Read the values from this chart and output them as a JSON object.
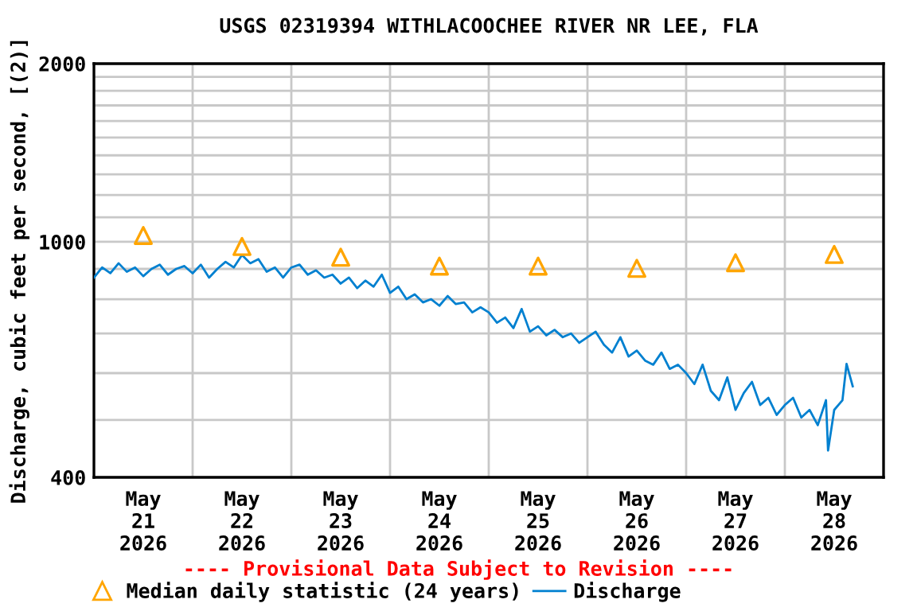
{
  "chart_data": {
    "type": "line",
    "title": "USGS 02319394 WITHLACOOCHEE RIVER NR LEE, FLA",
    "ylabel": "Discharge, cubic feet per second, [(2)]",
    "annotations": [
      "---- Provisional Data Subject to Revision ----"
    ],
    "log": true,
    "grid": true,
    "legend": "bottom",
    "xlim": [
      "2026-05-21T00:00",
      "2026-05-29T00:00"
    ],
    "xticks": [
      {
        "value": "2026-05-21T00:00",
        "label": null
      },
      {
        "value": "2026-05-22T00:00",
        "label": null
      },
      {
        "value": "2026-05-23T00:00",
        "label": null
      },
      {
        "value": "2026-05-24T00:00",
        "label": null
      },
      {
        "value": "2026-05-25T00:00",
        "label": null
      },
      {
        "value": "2026-05-26T00:00",
        "label": null
      },
      {
        "value": "2026-05-27T00:00",
        "label": null
      },
      {
        "value": "2026-05-28T00:00",
        "label": null
      },
      {
        "value": "2026-05-29T00:00",
        "label": null
      },
      {
        "value": "2026-05-21T12:00",
        "label": "May\n21\n2026"
      },
      {
        "value": "2026-05-22T12:00",
        "label": "May\n22\n2026"
      },
      {
        "value": "2026-05-23T12:00",
        "label": "May\n23\n2026"
      },
      {
        "value": "2026-05-24T12:00",
        "label": "May\n24\n2026"
      },
      {
        "value": "2026-05-25T12:00",
        "label": "May\n25\n2026"
      },
      {
        "value": "2026-05-26T12:00",
        "label": "May\n26\n2026"
      },
      {
        "value": "2026-05-27T12:00",
        "label": "May\n27\n2026"
      },
      {
        "value": "2026-05-28T12:00",
        "label": "May\n28\n2026"
      }
    ],
    "ylim": [
      400,
      2000
    ],
    "yticks": [
      400,
      {
        "value": 500,
        "label": null
      },
      {
        "value": 600,
        "label": null
      },
      {
        "value": 700,
        "label": null
      },
      {
        "value": 800,
        "label": null
      },
      {
        "value": 900,
        "label": null
      },
      1000,
      {
        "value": 1100,
        "label": null
      },
      {
        "value": 1200,
        "label": null
      },
      {
        "value": 1300,
        "label": null
      },
      {
        "value": 1400,
        "label": null
      },
      {
        "value": 1500,
        "label": null
      },
      {
        "value": 1600,
        "label": null
      },
      {
        "value": 1700,
        "label": null
      },
      {
        "value": 1800,
        "label": null
      },
      {
        "value": 1900,
        "label": null
      },
      2000
    ],
    "series": [
      {
        "name": "Median daily statistic (24 years)",
        "type": "scatter",
        "marker": "triangle",
        "color": "#ffa500",
        "x": [
          "2026-05-21T12:00",
          "2026-05-22T12:00",
          "2026-05-23T12:00",
          "2026-05-24T12:00",
          "2026-05-25T12:00",
          "2026-05-26T12:00",
          "2026-05-27T12:00",
          "2026-05-28T12:00"
        ],
        "values": [
          1025,
          982,
          942,
          910,
          910,
          902,
          922,
          952
        ]
      },
      {
        "name": "Discharge",
        "color": "#0080d0",
        "x": [
          "2026-05-21T00:00",
          "2026-05-21T02:00",
          "2026-05-21T04:00",
          "2026-05-21T06:00",
          "2026-05-21T08:00",
          "2026-05-21T10:00",
          "2026-05-21T12:00",
          "2026-05-21T14:00",
          "2026-05-21T16:00",
          "2026-05-21T18:00",
          "2026-05-21T20:00",
          "2026-05-21T22:00",
          "2026-05-22T00:00",
          "2026-05-22T02:00",
          "2026-05-22T04:00",
          "2026-05-22T06:00",
          "2026-05-22T08:00",
          "2026-05-22T10:00",
          "2026-05-22T12:00",
          "2026-05-22T14:00",
          "2026-05-22T16:00",
          "2026-05-22T18:00",
          "2026-05-22T20:00",
          "2026-05-22T22:00",
          "2026-05-23T00:00",
          "2026-05-23T02:00",
          "2026-05-23T04:00",
          "2026-05-23T06:00",
          "2026-05-23T08:00",
          "2026-05-23T10:00",
          "2026-05-23T12:00",
          "2026-05-23T14:00",
          "2026-05-23T16:00",
          "2026-05-23T18:00",
          "2026-05-23T20:00",
          "2026-05-23T22:00",
          "2026-05-24T00:00",
          "2026-05-24T02:00",
          "2026-05-24T04:00",
          "2026-05-24T06:00",
          "2026-05-24T08:00",
          "2026-05-24T10:00",
          "2026-05-24T12:00",
          "2026-05-24T14:00",
          "2026-05-24T16:00",
          "2026-05-24T18:00",
          "2026-05-24T20:00",
          "2026-05-24T22:00",
          "2026-05-25T00:00",
          "2026-05-25T02:00",
          "2026-05-25T04:00",
          "2026-05-25T06:00",
          "2026-05-25T08:00",
          "2026-05-25T10:00",
          "2026-05-25T12:00",
          "2026-05-25T14:00",
          "2026-05-25T16:00",
          "2026-05-25T18:00",
          "2026-05-25T20:00",
          "2026-05-25T22:00",
          "2026-05-26T00:00",
          "2026-05-26T02:00",
          "2026-05-26T04:00",
          "2026-05-26T06:00",
          "2026-05-26T08:00",
          "2026-05-26T10:00",
          "2026-05-26T12:00",
          "2026-05-26T14:00",
          "2026-05-26T16:00",
          "2026-05-26T18:00",
          "2026-05-26T20:00",
          "2026-05-26T22:00",
          "2026-05-27T00:00",
          "2026-05-27T02:00",
          "2026-05-27T04:00",
          "2026-05-27T06:00",
          "2026-05-27T08:00",
          "2026-05-27T10:00",
          "2026-05-27T12:00",
          "2026-05-27T14:00",
          "2026-05-27T16:00",
          "2026-05-27T18:00",
          "2026-05-27T20:00",
          "2026-05-27T22:00",
          "2026-05-28T00:00",
          "2026-05-28T02:00",
          "2026-05-28T04:00",
          "2026-05-28T06:00",
          "2026-05-28T08:00",
          "2026-05-28T10:00",
          "2026-05-28T10:30",
          "2026-05-28T12:00",
          "2026-05-28T14:00",
          "2026-05-28T15:00",
          "2026-05-28T16:30"
        ],
        "values": [
          870,
          905,
          885,
          920,
          890,
          905,
          875,
          900,
          915,
          880,
          900,
          910,
          885,
          915,
          870,
          900,
          925,
          905,
          950,
          920,
          935,
          890,
          905,
          870,
          905,
          915,
          880,
          895,
          870,
          880,
          850,
          870,
          835,
          860,
          840,
          880,
          820,
          840,
          800,
          815,
          790,
          800,
          780,
          810,
          785,
          790,
          760,
          775,
          760,
          730,
          745,
          715,
          770,
          705,
          720,
          695,
          710,
          690,
          700,
          675,
          690,
          705,
          670,
          650,
          690,
          640,
          655,
          630,
          620,
          650,
          610,
          620,
          600,
          575,
          620,
          560,
          540,
          590,
          520,
          555,
          580,
          530,
          545,
          510,
          530,
          545,
          505,
          520,
          490,
          540,
          444,
          520,
          540,
          622,
          570
        ]
      }
    ]
  }
}
